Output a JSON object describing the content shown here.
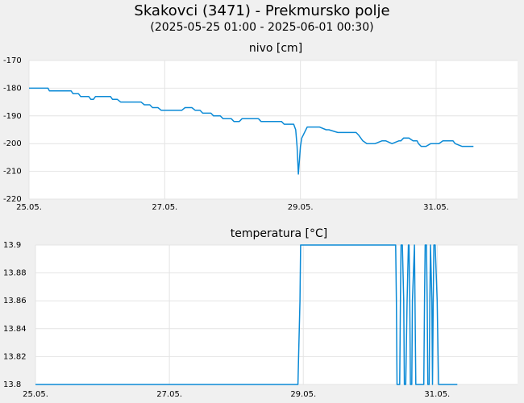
{
  "header": {
    "title": "Skakovci (3471) - Prekmursko polje",
    "subtitle": "(2025-05-25 01:00 - 2025-06-01 00:30)"
  },
  "colors": {
    "background": "#f0f0f0",
    "plot_background": "#ffffff",
    "series": "#0b8ad6",
    "grid": "#e4e4e4"
  },
  "chart_data": [
    {
      "type": "line",
      "title": "nivo [cm]",
      "xlabel": "",
      "ylabel": "",
      "x_ticks": [
        "25.05.",
        "27.05.",
        "29.05.",
        "31.05."
      ],
      "x_tick_values": [
        0,
        2,
        4,
        6
      ],
      "xlim": [
        0,
        7.2
      ],
      "ylim": [
        -220,
        -170
      ],
      "y_ticks": [
        -170,
        -180,
        -190,
        -200,
        -210,
        -220
      ],
      "grid": true,
      "series": [
        {
          "x": [
            0,
            0.28,
            0.3,
            0.62,
            0.65,
            0.73,
            0.76,
            0.88,
            0.91,
            0.95,
            0.98,
            1.2,
            1.23,
            1.3,
            1.35,
            1.65,
            1.7,
            1.78,
            1.82,
            1.9,
            1.95,
            2.25,
            2.3,
            2.4,
            2.45,
            2.52,
            2.56,
            2.68,
            2.72,
            2.82,
            2.86,
            2.98,
            3.02,
            3.1,
            3.14,
            3.38,
            3.42,
            3.72,
            3.76,
            3.9,
            3.93,
            3.95,
            3.97,
            4.0,
            4.02,
            4.04,
            4.06,
            4.08,
            4.1,
            4.15,
            4.2,
            4.28,
            4.38,
            4.42,
            4.55,
            4.6,
            4.82,
            4.86,
            4.92,
            4.98,
            5.05,
            5.1,
            5.2,
            5.26,
            5.35,
            5.45,
            5.48,
            5.52,
            5.6,
            5.66,
            5.72,
            5.74,
            5.78,
            5.85,
            5.92,
            5.95,
            6.0,
            6.04,
            6.1,
            6.14,
            6.25,
            6.28,
            6.38,
            6.42,
            6.45,
            6.48,
            6.55
          ],
          "y": [
            -180,
            -180,
            -181,
            -181,
            -182,
            -182,
            -183,
            -183,
            -184,
            -184,
            -183,
            -183,
            -184,
            -184,
            -185,
            -185,
            -186,
            -186,
            -187,
            -187,
            -188,
            -188,
            -187,
            -187,
            -188,
            -188,
            -189,
            -189,
            -190,
            -190,
            -191,
            -191,
            -192,
            -192,
            -191,
            -191,
            -192,
            -192,
            -193,
            -193,
            -195,
            -201,
            -211,
            -201,
            -198,
            -197,
            -196,
            -195,
            -194,
            -194,
            -194,
            -194,
            -195,
            -195,
            -196,
            -196,
            -196,
            -197,
            -199,
            -200,
            -200,
            -200,
            -199,
            -199,
            -200,
            -199,
            -199,
            -198,
            -198,
            -199,
            -199,
            -200,
            -201,
            -201,
            -200,
            -200,
            -200,
            -200,
            -199,
            -199,
            -199,
            -200,
            -201,
            -201,
            -201,
            -201,
            -201
          ]
        }
      ]
    },
    {
      "type": "line",
      "title": "temperatura [°C]",
      "xlabel": "",
      "ylabel": "",
      "x_ticks": [
        "25.05.",
        "27.05.",
        "29.05.",
        "31.05."
      ],
      "x_tick_values": [
        0,
        2,
        4,
        6
      ],
      "xlim": [
        0,
        7.2
      ],
      "ylim": [
        13.8,
        13.9
      ],
      "y_ticks": [
        "13.9",
        "13.88",
        "13.86",
        "13.84",
        "13.82",
        "13.8"
      ],
      "y_tick_values": [
        13.9,
        13.88,
        13.86,
        13.84,
        13.82,
        13.8
      ],
      "grid": true,
      "series": [
        {
          "x": [
            0,
            3.92,
            3.93,
            3.95,
            3.96,
            3.97,
            5.38,
            5.39,
            5.4,
            5.41,
            5.44,
            5.45,
            5.46,
            5.48,
            5.5,
            5.51,
            5.53,
            5.55,
            5.57,
            5.58,
            5.59,
            5.6,
            5.62,
            5.63,
            5.66,
            5.68,
            5.8,
            5.81,
            5.82,
            5.84,
            5.85,
            5.86,
            5.88,
            5.89,
            5.9,
            5.92,
            5.93,
            5.94,
            5.95,
            5.97,
            6.0,
            6.02,
            6.03,
            6.04,
            6.3
          ],
          "y": [
            13.8,
            13.8,
            13.82,
            13.86,
            13.9,
            13.9,
            13.9,
            13.86,
            13.8,
            13.8,
            13.8,
            13.86,
            13.9,
            13.9,
            13.86,
            13.8,
            13.8,
            13.86,
            13.9,
            13.9,
            13.86,
            13.8,
            13.8,
            13.86,
            13.9,
            13.8,
            13.8,
            13.86,
            13.9,
            13.9,
            13.86,
            13.8,
            13.8,
            13.86,
            13.9,
            13.86,
            13.8,
            13.86,
            13.9,
            13.9,
            13.86,
            13.8,
            13.8,
            13.8,
            13.8
          ]
        }
      ]
    }
  ]
}
